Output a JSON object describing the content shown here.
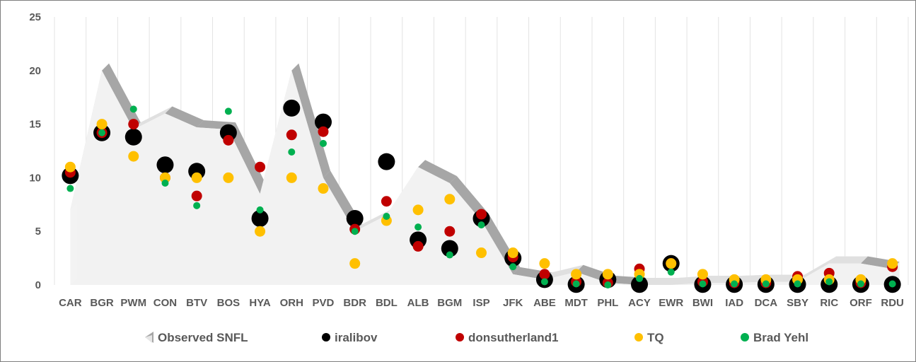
{
  "chart_data": {
    "type": "scatter",
    "title": "",
    "xlabel": "",
    "ylabel": "",
    "ylim": [
      0,
      25
    ],
    "yticks": [
      0,
      5,
      10,
      15,
      20,
      25
    ],
    "grid": "vertical",
    "legend_position": "bottom",
    "categories": [
      "CAR",
      "BGR",
      "PWM",
      "CON",
      "BTV",
      "BOS",
      "HYA",
      "ORH",
      "PVD",
      "BDR",
      "BDL",
      "ALB",
      "BGM",
      "ISP",
      "JFK",
      "ABE",
      "MDT",
      "PHL",
      "ACY",
      "EWR",
      "BWI",
      "IAD",
      "DCA",
      "SBY",
      "RIC",
      "ORF",
      "RDU"
    ],
    "series": [
      {
        "name": "Observed SNFL",
        "style": "area-3d",
        "color": "#f2f2f2",
        "edge_color": "#a6a6a6",
        "values": [
          7,
          20,
          14.5,
          16,
          14.7,
          14.5,
          8.5,
          20,
          10,
          5,
          6.5,
          11,
          9.5,
          6,
          1,
          0.5,
          1.2,
          0.2,
          0,
          0,
          0.2,
          0.2,
          0.3,
          0.3,
          2,
          2,
          1.5
        ]
      },
      {
        "name": "iralibov",
        "style": "marker-large",
        "color": "#000000",
        "values": [
          10.2,
          14.2,
          13.8,
          11.2,
          10.6,
          14.2,
          6.2,
          16.5,
          15.2,
          6.2,
          11.5,
          4.2,
          3.4,
          6.2,
          2.5,
          0.5,
          0.05,
          0.5,
          0.05,
          2,
          0.05,
          0.05,
          0.05,
          0.05,
          0.05,
          0.05,
          0.05
        ]
      },
      {
        "name": "donsutherland1",
        "style": "marker-medium",
        "color": "#c00000",
        "values": [
          10.5,
          14.2,
          15,
          10,
          8.3,
          13.5,
          11,
          14,
          14.3,
          5.2,
          7.8,
          3.6,
          5,
          6.6,
          2.6,
          1,
          0.3,
          0.2,
          1.5,
          2,
          0.3,
          0.2,
          0.2,
          0.8,
          1.1,
          0.2,
          1.7
        ]
      },
      {
        "name": "TQ",
        "style": "marker-medium",
        "color": "#ffc000",
        "values": [
          11,
          15,
          12,
          10,
          10,
          10,
          5,
          10,
          9,
          2,
          6,
          7,
          8,
          3,
          3,
          2,
          1,
          1,
          1,
          2,
          1,
          0.5,
          0.5,
          0.5,
          0.5,
          0.5,
          2
        ]
      },
      {
        "name": "Brad Yehl",
        "style": "marker-small",
        "color": "#00b050",
        "values": [
          9,
          14.2,
          16.4,
          9.5,
          7.4,
          16.2,
          7,
          12.4,
          13.2,
          5,
          6.4,
          5.4,
          2.8,
          5.6,
          1.7,
          0.3,
          0.1,
          0,
          0.6,
          1.2,
          0.1,
          0.1,
          0.1,
          0.1,
          0.3,
          0.1,
          0.1
        ]
      }
    ]
  }
}
